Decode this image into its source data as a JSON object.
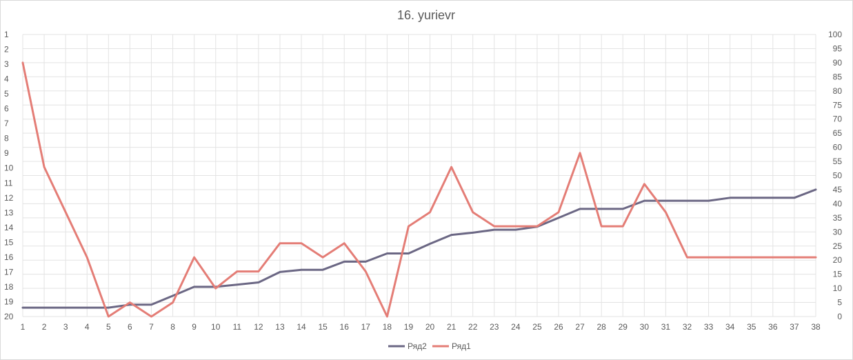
{
  "chart_data": {
    "type": "line",
    "title": "16. yurievr",
    "categories": [
      "1",
      "2",
      "3",
      "4",
      "5",
      "6",
      "7",
      "8",
      "9",
      "10",
      "11",
      "12",
      "13",
      "14",
      "15",
      "16",
      "17",
      "18",
      "19",
      "20",
      "21",
      "22",
      "23",
      "24",
      "25",
      "26",
      "27",
      "28",
      "29",
      "30",
      "31",
      "32",
      "33",
      "34",
      "35",
      "36",
      "37",
      "38"
    ],
    "left_axis": {
      "ticks": [
        "1",
        "2",
        "3",
        "4",
        "5",
        "6",
        "7",
        "8",
        "9",
        "10",
        "11",
        "12",
        "13",
        "14",
        "15",
        "16",
        "17",
        "18",
        "19",
        "20"
      ],
      "range": [
        1,
        20
      ],
      "reversed": true
    },
    "right_axis": {
      "ticks": [
        "0",
        "5",
        "10",
        "15",
        "20",
        "25",
        "30",
        "35",
        "40",
        "45",
        "50",
        "55",
        "60",
        "65",
        "70",
        "75",
        "80",
        "85",
        "90",
        "95",
        "100"
      ],
      "range": [
        0,
        100
      ]
    },
    "grid": true,
    "legend_position": "bottom",
    "series": [
      {
        "name": "Ряд2",
        "axis": "left",
        "color": "#6b6784",
        "values": [
          19.4,
          19.4,
          19.4,
          19.4,
          19.4,
          19.2,
          19.2,
          18.6,
          18.0,
          18.0,
          17.85,
          17.7,
          17.0,
          16.85,
          16.85,
          16.3,
          16.3,
          15.75,
          15.75,
          15.1,
          14.5,
          14.35,
          14.15,
          14.15,
          13.95,
          13.35,
          12.75,
          12.75,
          12.75,
          12.2,
          12.2,
          12.2,
          12.2,
          12.0,
          12.0,
          12.0,
          12.0,
          11.45
        ]
      },
      {
        "name": "Ряд1",
        "axis": "right",
        "color": "#e47d76",
        "values": [
          90,
          53,
          37,
          21,
          0,
          5,
          0,
          5,
          21,
          10,
          16,
          16,
          26,
          26,
          21,
          26,
          16,
          0,
          32,
          37,
          53,
          37,
          32,
          32,
          32,
          37,
          58,
          32,
          32,
          47,
          37,
          21,
          21,
          21,
          21,
          21,
          21,
          21
        ]
      }
    ]
  }
}
